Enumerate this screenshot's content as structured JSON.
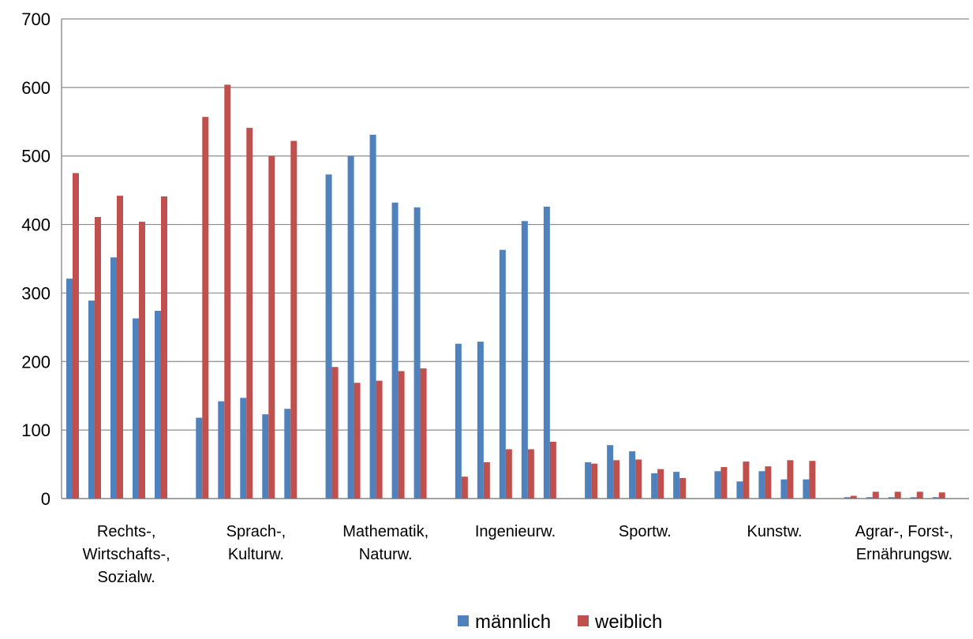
{
  "chart_data": {
    "type": "bar",
    "categories": [
      "Rechts-, Wirtschafts-, Sozialw.",
      "Sprach-, Kulturw.",
      "Mathematik, Naturw.",
      "Ingenieurw.",
      "Sportw.",
      "Kunstw.",
      "Agrar-, Forst-, Ernährungsw."
    ],
    "category_label_lines": [
      [
        "Rechts-,",
        "Wirtschafts-,",
        "Sozialw."
      ],
      [
        "Sprach-,",
        "Kulturw."
      ],
      [
        "Mathematik,",
        "Naturw."
      ],
      [
        "Ingenieurw."
      ],
      [
        "Sportw."
      ],
      [
        "Kunstw."
      ],
      [
        "Agrar-, Forst-,",
        "Ernährungsw."
      ]
    ],
    "series": [
      {
        "name": "männlich",
        "color": "#4f81bd",
        "values": [
          [
            321,
            289,
            352,
            263,
            274
          ],
          [
            118,
            142,
            147,
            123,
            131
          ],
          [
            473,
            500,
            531,
            432,
            425
          ],
          [
            226,
            229,
            363,
            405,
            426
          ],
          [
            53,
            78,
            69,
            37,
            39
          ],
          [
            40,
            25,
            40,
            28,
            28
          ],
          [
            2,
            2,
            2,
            2,
            2
          ]
        ]
      },
      {
        "name": "weiblich",
        "color": "#c0504d",
        "values": [
          [
            475,
            411,
            442,
            404,
            441
          ],
          [
            557,
            604,
            541,
            500,
            522
          ],
          [
            192,
            169,
            172,
            186,
            190
          ],
          [
            32,
            53,
            72,
            72,
            83
          ],
          [
            51,
            56,
            57,
            43,
            30
          ],
          [
            46,
            54,
            47,
            56,
            55
          ],
          [
            4,
            10,
            10,
            10,
            9
          ]
        ]
      }
    ],
    "ylim": [
      0,
      700
    ],
    "yticks": [
      0,
      100,
      200,
      300,
      400,
      500,
      600,
      700
    ],
    "grid": true,
    "legend_position": "bottom-center",
    "title": "",
    "xlabel": "",
    "ylabel": ""
  }
}
